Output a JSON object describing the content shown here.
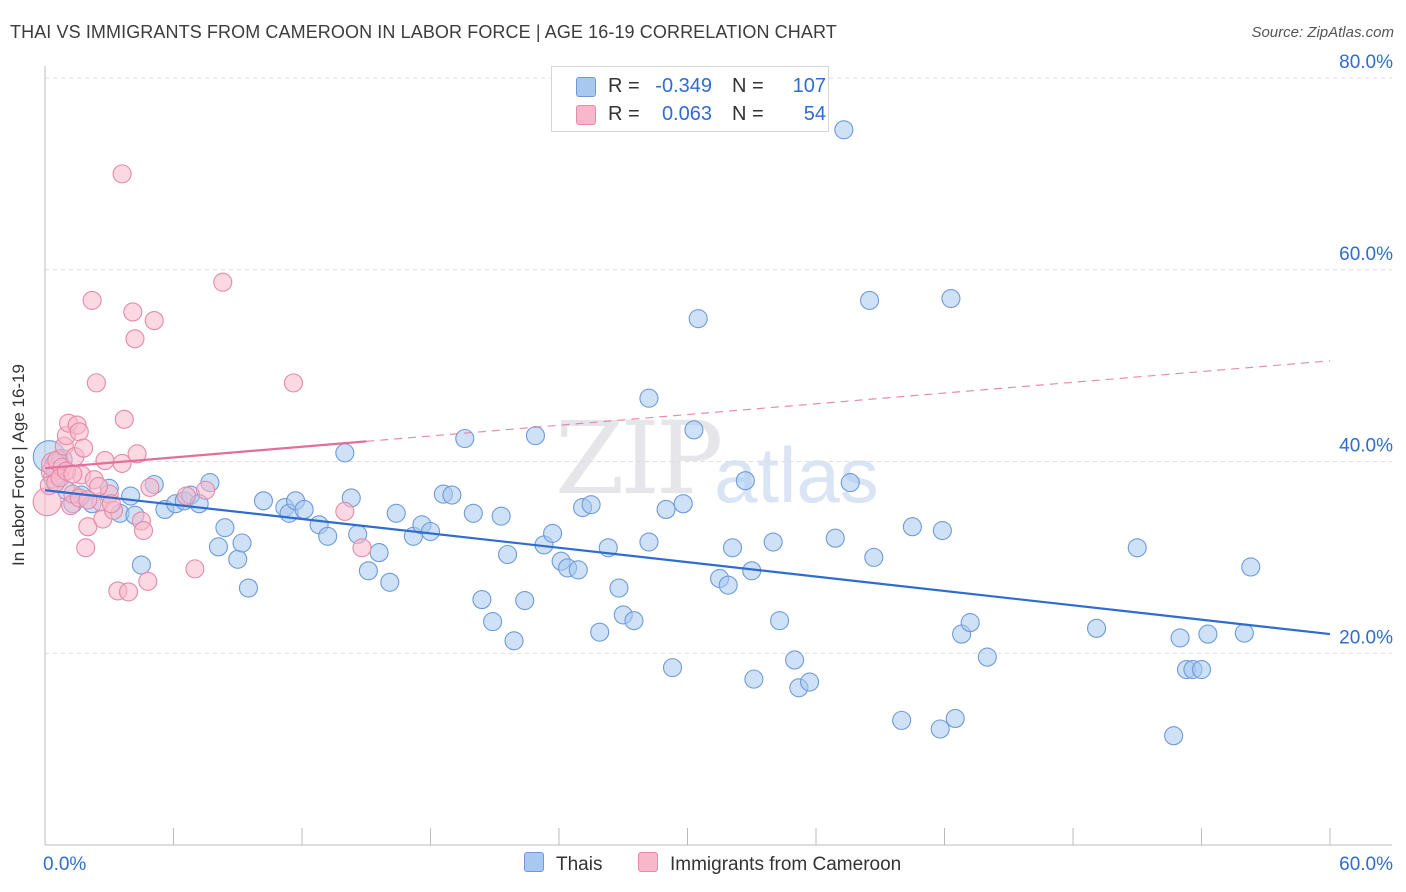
{
  "title": "THAI VS IMMIGRANTS FROM CAMEROON IN LABOR FORCE | AGE 16-19 CORRELATION CHART",
  "source": "Source: ZipAtlas.com",
  "watermark": {
    "zip": "ZIP",
    "atlas": "atlas"
  },
  "colors": {
    "thai_fill": "#a8c8f0",
    "thai_stroke": "#6e9bd8",
    "thai_line": "#2f6ccf",
    "cam_fill": "#f7b8cb",
    "cam_stroke": "#e58aa8",
    "cam_line": "#e0709a",
    "axis_text": "#2f6ccf",
    "grid": "#dddddd"
  },
  "correlation": {
    "thai": {
      "r_label": "R =",
      "r_value": "-0.349",
      "n_label": "N =",
      "n_value": "107"
    },
    "cameroon": {
      "r_label": "R =",
      "r_value": "0.063",
      "n_label": "N =",
      "n_value": "54"
    }
  },
  "legend": {
    "thai": "Thais",
    "cameroon": "Immigrants from Cameroon"
  },
  "chart_data": {
    "type": "scatter",
    "title": "THAI VS IMMIGRANTS FROM CAMEROON IN LABOR FORCE | AGE 16-19 CORRELATION CHART",
    "xlabel": "",
    "ylabel": "In Labor Force | Age 16-19",
    "xlim": [
      0,
      60
    ],
    "ylim": [
      0,
      80
    ],
    "x_tick_labels": {
      "min": "0.0%",
      "max": "60.0%"
    },
    "y_ticks": [
      {
        "value": 20,
        "label": "20.0%"
      },
      {
        "value": 40,
        "label": "40.0%"
      },
      {
        "value": 60,
        "label": "60.0%"
      },
      {
        "value": 80,
        "label": "80.0%"
      }
    ],
    "grid": true,
    "legend_position": "bottom-center",
    "series": [
      {
        "name": "Thais",
        "trend": {
          "x1": 0,
          "y1": 37.0,
          "x2": 60,
          "y2": 22.0
        },
        "points": [
          [
            0.2,
            40.5,
            16
          ],
          [
            0.5,
            39.6,
            11
          ],
          [
            0.8,
            40.2,
            10
          ],
          [
            0.4,
            38.3,
            10
          ],
          [
            1.0,
            37.0,
            9
          ],
          [
            1.3,
            35.6,
            9
          ],
          [
            1.7,
            36.5,
            9
          ],
          [
            2.2,
            35.6,
            9
          ],
          [
            3.0,
            37.2,
            9
          ],
          [
            3.5,
            34.6,
            9
          ],
          [
            4.0,
            36.4,
            9
          ],
          [
            4.2,
            34.4,
            9
          ],
          [
            5.1,
            37.6,
            9
          ],
          [
            5.6,
            35.0,
            9
          ],
          [
            6.1,
            35.6,
            9
          ],
          [
            6.5,
            35.9,
            9
          ],
          [
            6.8,
            36.5,
            9
          ],
          [
            7.2,
            35.6,
            9
          ],
          [
            8.1,
            31.1,
            9
          ],
          [
            7.7,
            37.8,
            9
          ],
          [
            4.5,
            29.2,
            9
          ],
          [
            8.4,
            33.1,
            9
          ],
          [
            9.0,
            29.8,
            9
          ],
          [
            9.5,
            26.8,
            9
          ],
          [
            9.2,
            31.5,
            9
          ],
          [
            10.2,
            35.9,
            9
          ],
          [
            11.2,
            35.2,
            9
          ],
          [
            11.4,
            34.6,
            9
          ],
          [
            11.7,
            35.9,
            9
          ],
          [
            12.1,
            35.0,
            9
          ],
          [
            12.8,
            33.4,
            9
          ],
          [
            13.2,
            32.2,
            9
          ],
          [
            14.0,
            40.9,
            9
          ],
          [
            14.3,
            36.2,
            9
          ],
          [
            14.6,
            32.4,
            9
          ],
          [
            15.1,
            28.6,
            9
          ],
          [
            15.6,
            30.5,
            9
          ],
          [
            16.1,
            27.4,
            9
          ],
          [
            16.4,
            34.6,
            9
          ],
          [
            17.2,
            32.2,
            9
          ],
          [
            17.6,
            33.4,
            9
          ],
          [
            18.0,
            32.7,
            9
          ],
          [
            18.6,
            36.6,
            9
          ],
          [
            19.0,
            36.5,
            9
          ],
          [
            19.6,
            42.4,
            9
          ],
          [
            20.0,
            34.6,
            9
          ],
          [
            20.4,
            25.6,
            9
          ],
          [
            20.9,
            23.3,
            9
          ],
          [
            21.3,
            34.3,
            9
          ],
          [
            21.6,
            30.3,
            9
          ],
          [
            21.9,
            21.3,
            9
          ],
          [
            22.4,
            25.5,
            9
          ],
          [
            22.9,
            42.7,
            9
          ],
          [
            23.3,
            31.3,
            9
          ],
          [
            23.7,
            32.5,
            9
          ],
          [
            24.1,
            29.6,
            9
          ],
          [
            24.4,
            28.9,
            9
          ],
          [
            24.9,
            28.7,
            9
          ],
          [
            25.1,
            35.2,
            9
          ],
          [
            25.5,
            35.5,
            9
          ],
          [
            25.9,
            22.2,
            9
          ],
          [
            26.3,
            31.0,
            9
          ],
          [
            26.8,
            26.8,
            9
          ],
          [
            27.0,
            24.0,
            9
          ],
          [
            27.5,
            23.4,
            9
          ],
          [
            28.2,
            31.6,
            9
          ],
          [
            28.2,
            46.6,
            9
          ],
          [
            29.0,
            35.0,
            9
          ],
          [
            29.3,
            18.5,
            9
          ],
          [
            29.8,
            35.6,
            9
          ],
          [
            30.3,
            43.3,
            9
          ],
          [
            30.5,
            54.9,
            9
          ],
          [
            31.5,
            27.8,
            9
          ],
          [
            31.9,
            27.1,
            9
          ],
          [
            32.1,
            31.0,
            9
          ],
          [
            32.7,
            38.0,
            9
          ],
          [
            33.0,
            28.6,
            9
          ],
          [
            33.1,
            17.3,
            9
          ],
          [
            34.0,
            31.6,
            9
          ],
          [
            34.3,
            23.4,
            9
          ],
          [
            35.0,
            19.3,
            9
          ],
          [
            35.2,
            16.4,
            9
          ],
          [
            35.7,
            17.0,
            9
          ],
          [
            36.9,
            32.0,
            9
          ],
          [
            37.3,
            74.6,
            9
          ],
          [
            37.6,
            37.8,
            9
          ],
          [
            38.5,
            56.8,
            9
          ],
          [
            38.7,
            30.0,
            9
          ],
          [
            40.0,
            13.0,
            9
          ],
          [
            40.5,
            33.2,
            9
          ],
          [
            41.9,
            32.8,
            9
          ],
          [
            41.8,
            12.1,
            9
          ],
          [
            42.5,
            13.2,
            9
          ],
          [
            42.3,
            57.0,
            9
          ],
          [
            42.8,
            22.0,
            9
          ],
          [
            43.2,
            23.2,
            9
          ],
          [
            44.0,
            19.6,
            9
          ],
          [
            49.1,
            22.6,
            9
          ],
          [
            51.0,
            31.0,
            9
          ],
          [
            53.0,
            21.6,
            9
          ],
          [
            53.3,
            18.3,
            9
          ],
          [
            53.6,
            18.3,
            9
          ],
          [
            52.7,
            11.4,
            9
          ],
          [
            54.0,
            18.3,
            9
          ],
          [
            54.3,
            22.0,
            9
          ],
          [
            56.0,
            22.1,
            9
          ],
          [
            56.3,
            29.0,
            9
          ]
        ]
      },
      {
        "name": "Immigrants from Cameroon",
        "trend": {
          "x1": 0,
          "y1": 39.3,
          "x2": 15,
          "y2": 42.1
        },
        "trend_dashed": {
          "x1": 15,
          "y1": 42.1,
          "x2": 60,
          "y2": 50.5
        },
        "points": [
          [
            0.1,
            35.8,
            14
          ],
          [
            0.3,
            38.9,
            10
          ],
          [
            0.4,
            39.7,
            12
          ],
          [
            0.6,
            40.1,
            10
          ],
          [
            0.8,
            39.4,
            9
          ],
          [
            0.9,
            41.6,
            9
          ],
          [
            1.0,
            42.7,
            9
          ],
          [
            1.1,
            44.0,
            9
          ],
          [
            1.2,
            35.4,
            9
          ],
          [
            1.3,
            36.6,
            9
          ],
          [
            1.4,
            40.5,
            9
          ],
          [
            1.5,
            43.8,
            9
          ],
          [
            1.6,
            43.1,
            9
          ],
          [
            1.7,
            38.6,
            9
          ],
          [
            1.8,
            41.4,
            9
          ],
          [
            1.9,
            31.0,
            9
          ],
          [
            2.0,
            33.2,
            9
          ],
          [
            2.2,
            56.8,
            9
          ],
          [
            2.3,
            38.1,
            9
          ],
          [
            2.4,
            48.2,
            9
          ],
          [
            2.6,
            35.8,
            9
          ],
          [
            2.7,
            34.0,
            9
          ],
          [
            2.8,
            40.1,
            9
          ],
          [
            3.0,
            36.6,
            9
          ],
          [
            3.2,
            34.9,
            9
          ],
          [
            3.4,
            26.5,
            9
          ],
          [
            3.6,
            39.8,
            9
          ],
          [
            3.7,
            44.4,
            9
          ],
          [
            3.9,
            26.4,
            9
          ],
          [
            4.1,
            55.6,
            9
          ],
          [
            4.2,
            52.8,
            9
          ],
          [
            4.3,
            40.8,
            9
          ],
          [
            4.5,
            33.8,
            9
          ],
          [
            4.6,
            32.8,
            9
          ],
          [
            4.8,
            27.5,
            9
          ],
          [
            4.9,
            37.3,
            9
          ],
          [
            5.1,
            54.7,
            9
          ],
          [
            3.6,
            70.0,
            9
          ],
          [
            6.6,
            36.4,
            9
          ],
          [
            7.0,
            28.8,
            9
          ],
          [
            7.5,
            37.0,
            9
          ],
          [
            8.3,
            58.7,
            9
          ],
          [
            11.6,
            48.2,
            9
          ],
          [
            14.0,
            34.8,
            9
          ],
          [
            14.8,
            31.0,
            9
          ],
          [
            0.2,
            37.5,
            9
          ],
          [
            0.5,
            37.8,
            9
          ],
          [
            0.7,
            38.3,
            9
          ],
          [
            1.0,
            39.0,
            9
          ],
          [
            1.3,
            38.7,
            9
          ],
          [
            1.6,
            36.2,
            9
          ],
          [
            2.0,
            36.0,
            9
          ],
          [
            2.5,
            37.4,
            9
          ],
          [
            3.1,
            35.6,
            9
          ]
        ]
      }
    ]
  }
}
